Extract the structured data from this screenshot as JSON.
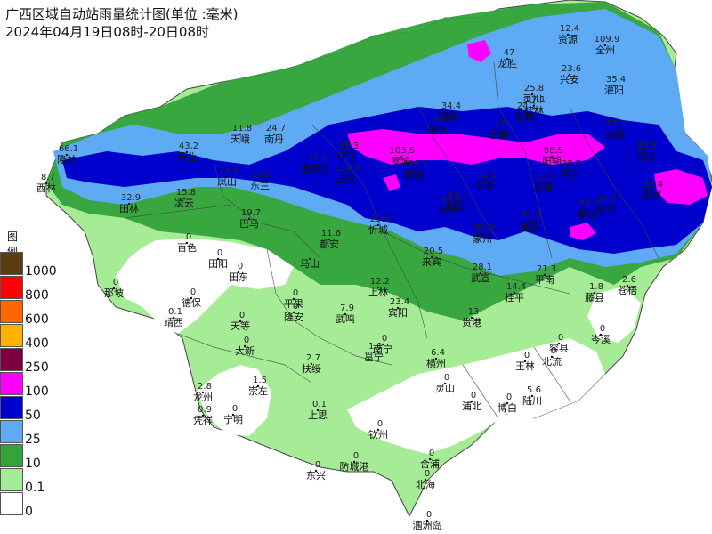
{
  "title": {
    "line1": "广西区域自动站雨量统计图(单位 :毫米)",
    "line2": "2024年04月19日08时-20日08时"
  },
  "legend": {
    "title": "图例",
    "items": [
      {
        "label": "1000",
        "color": "#5a3d10"
      },
      {
        "label": "800",
        "color": "#ff0000"
      },
      {
        "label": "600",
        "color": "#ff6600"
      },
      {
        "label": "400",
        "color": "#ffb000"
      },
      {
        "label": "250",
        "color": "#7a0040"
      },
      {
        "label": "100",
        "color": "#ff00ff"
      },
      {
        "label": "50",
        "color": "#0000cc"
      },
      {
        "label": "25",
        "color": "#5eaaf5"
      },
      {
        "label": "10",
        "color": "#33a33a"
      },
      {
        "label": "0.1",
        "color": "#a6ec96"
      },
      {
        "label": "0",
        "color": "#ffffff"
      }
    ]
  },
  "stations": [
    {
      "name": "资源",
      "value": "12.4"
    },
    {
      "name": "全州",
      "value": "109.9"
    },
    {
      "name": "龙胜",
      "value": "47"
    },
    {
      "name": "兴安",
      "value": "23.6"
    },
    {
      "name": "灌阳",
      "value": "35.4"
    },
    {
      "name": "灵川",
      "value": "25.8"
    },
    {
      "name": "临桂",
      "value": "24.1"
    },
    {
      "name": "桂林",
      "value": "27.1"
    },
    {
      "name": "融安",
      "value": "34.4"
    },
    {
      "name": "融水",
      "value": "42"
    },
    {
      "name": "永福",
      "value": "45"
    },
    {
      "name": "恭城",
      "value": "57.1"
    },
    {
      "name": "阳朔",
      "value": "98.5"
    },
    {
      "name": "钟山",
      "value": "55.5"
    },
    {
      "name": "荔浦",
      "value": "33.8"
    },
    {
      "name": "平乐",
      "value": "38.2"
    },
    {
      "name": "贺州",
      "value": "59.4"
    },
    {
      "name": "昭平",
      "value": "31.5"
    },
    {
      "name": "天峨",
      "value": "11.8"
    },
    {
      "name": "南丹",
      "value": "24.7"
    },
    {
      "name": "乐业",
      "value": "43.2"
    },
    {
      "name": "隆林",
      "value": "66.1"
    },
    {
      "name": "西林",
      "value": "8.7"
    },
    {
      "name": "凤山",
      "value": "24.4"
    },
    {
      "name": "东兰",
      "value": "10.8"
    },
    {
      "name": "凌云",
      "value": "15.8"
    },
    {
      "name": "田林",
      "value": "32.9"
    },
    {
      "name": "巴马",
      "value": "19.7"
    },
    {
      "name": "金城江",
      "value": "41.1"
    },
    {
      "name": "环江",
      "value": "45.3"
    },
    {
      "name": "罗城",
      "value": "103.5"
    },
    {
      "name": "宜州",
      "value": "134.4"
    },
    {
      "name": "柳城",
      "value": "104.1"
    },
    {
      "name": "鹿寨",
      "value": "35.1"
    },
    {
      "name": "柳州",
      "value": "44.8"
    },
    {
      "name": "柳江",
      "value": "49.7"
    },
    {
      "name": "忻城",
      "value": "29.9"
    },
    {
      "name": "象州",
      "value": "55.9"
    },
    {
      "name": "金秀",
      "value": "33.8"
    },
    {
      "name": "蒙山",
      "value": "65.3"
    },
    {
      "name": "都安",
      "value": "11.6"
    },
    {
      "name": "来宾",
      "value": "20.5"
    },
    {
      "name": "武宣",
      "value": "28.1"
    },
    {
      "name": "平南",
      "value": "21.3"
    },
    {
      "name": "藤县",
      "value": "1.8"
    },
    {
      "name": "苍梧",
      "value": "2.6"
    },
    {
      "name": "桂平",
      "value": "14.4"
    },
    {
      "name": "上林",
      "value": "12.2"
    },
    {
      "name": "宾阳",
      "value": "23.4"
    },
    {
      "name": "武鸣",
      "value": "7.9"
    },
    {
      "name": "马山",
      "value": ""
    },
    {
      "name": "贵港",
      "value": "13"
    },
    {
      "name": "横州",
      "value": "6.4"
    },
    {
      "name": "邕宁",
      "value": "1.1"
    },
    {
      "name": "南宁",
      "value": "0"
    },
    {
      "name": "百色",
      "value": "0"
    },
    {
      "name": "田阳",
      "value": "0"
    },
    {
      "name": "田东",
      "value": "0"
    },
    {
      "name": "那坡",
      "value": "0"
    },
    {
      "name": "德保",
      "value": "0"
    },
    {
      "name": "靖西",
      "value": "0.1"
    },
    {
      "name": "平果",
      "value": "0"
    },
    {
      "name": "隆安",
      "value": "0"
    },
    {
      "name": "天等",
      "value": "0"
    },
    {
      "name": "大新",
      "value": "0"
    },
    {
      "name": "扶绥",
      "value": "2.7"
    },
    {
      "name": "龙州",
      "value": "2.8"
    },
    {
      "name": "凭祥",
      "value": "0.9"
    },
    {
      "name": "宁明",
      "value": "0"
    },
    {
      "name": "崇左",
      "value": "1.5"
    },
    {
      "name": "上思",
      "value": "0.1"
    },
    {
      "name": "防城港",
      "value": "0"
    },
    {
      "name": "东兴",
      "value": "0"
    },
    {
      "name": "钦州",
      "value": "0"
    },
    {
      "name": "灵山",
      "value": "0"
    },
    {
      "name": "浦北",
      "value": "0"
    },
    {
      "name": "合浦",
      "value": "0"
    },
    {
      "name": "北海",
      "value": "0"
    },
    {
      "name": "涠洲岛",
      "value": "0"
    },
    {
      "name": "博白",
      "value": "0"
    },
    {
      "name": "陆川",
      "value": "5.6"
    },
    {
      "name": "玉林",
      "value": "0"
    },
    {
      "name": "北流",
      "value": "0"
    },
    {
      "name": "容县",
      "value": "0"
    },
    {
      "name": "岑溪",
      "value": "0"
    }
  ]
}
